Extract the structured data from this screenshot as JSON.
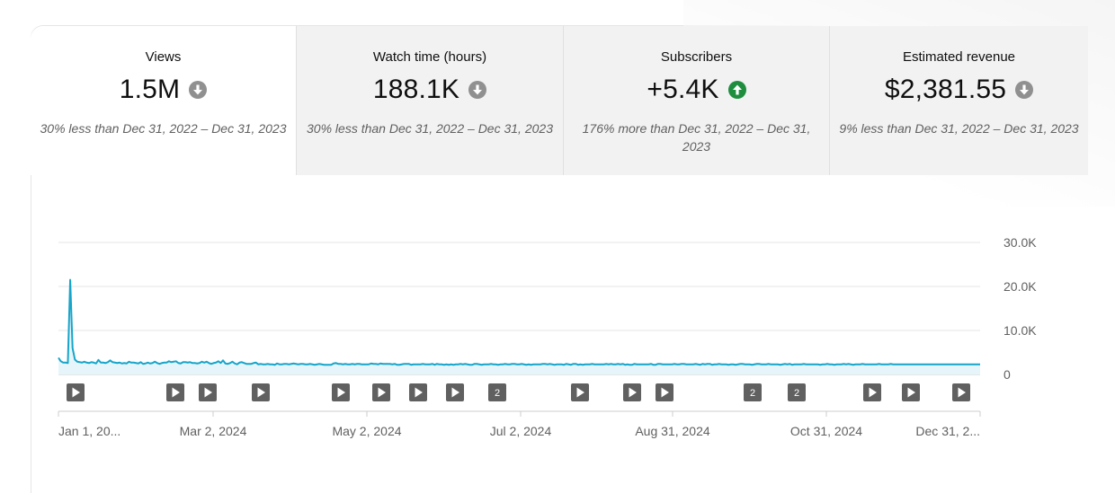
{
  "metrics": [
    {
      "label": "Views",
      "value": "1.5M",
      "trend": "down",
      "comparison": "30% less than Dec 31, 2022 – Dec 31, 2023",
      "active": true
    },
    {
      "label": "Watch time (hours)",
      "value": "188.1K",
      "trend": "down",
      "comparison": "30% less than Dec 31, 2022 – Dec 31, 2023",
      "active": false
    },
    {
      "label": "Subscribers",
      "value": "+5.4K",
      "trend": "up",
      "comparison": "176% more than Dec 31, 2022 – Dec 31, 2023",
      "active": false
    },
    {
      "label": "Estimated revenue",
      "value": "$2,381.55",
      "trend": "down",
      "comparison": "9% less than Dec 31, 2022 – Dec 31, 2023",
      "active": false
    }
  ],
  "icons": {
    "down": "arrow-down-circle-icon",
    "up": "arrow-up-circle-icon",
    "marker": "play-icon"
  },
  "colors": {
    "line": "#17a5c9",
    "area": "#e6f5fa",
    "trend_down": "#909090",
    "trend_up": "#1e8e3e",
    "marker": "#606060"
  },
  "chart_data": {
    "type": "area",
    "series": [
      {
        "values": [
          3800,
          3000,
          2700,
          2700,
          2600,
          21500,
          6000,
          3400,
          2900,
          2800,
          2700,
          2900,
          2700,
          2600,
          2800,
          2700,
          2500,
          3300,
          2700,
          2700,
          2600,
          2800,
          3200,
          2800,
          2700,
          2600,
          2700,
          2500,
          2600,
          2500,
          2900,
          2700,
          2700,
          2600,
          2500,
          2800,
          2400,
          2500,
          2700,
          2500,
          2600,
          2900,
          2600,
          2400,
          2600,
          2700,
          2700,
          3000,
          2800,
          2900,
          3000,
          2600,
          2500,
          2800,
          2800,
          2700,
          2800,
          2600,
          2600,
          2500,
          2600,
          2900,
          2700,
          2900,
          2600,
          2400,
          2600,
          2700,
          3000,
          2600,
          3200,
          2500,
          2400,
          2600,
          2900,
          2500,
          2300,
          2700,
          2800,
          2600,
          2400,
          2400,
          2400,
          2600,
          2700,
          2300,
          2400,
          2300,
          2300,
          2400,
          2300,
          2300,
          2200,
          2500,
          2300,
          2300,
          2400,
          2400,
          2300,
          2400,
          2500,
          2400,
          2300,
          2400,
          2400,
          2300,
          2300,
          2400,
          2300,
          2200,
          2300,
          2400,
          2300,
          2200,
          2200,
          2200,
          2200,
          2500,
          2600,
          2400,
          2400,
          2300,
          2400,
          2300,
          2300,
          2400,
          2300,
          2400,
          2400,
          2300,
          2300,
          2300,
          2300,
          2500,
          2400,
          2400,
          2300,
          2500,
          2400,
          2400,
          2400,
          2400,
          2300,
          2400,
          2200,
          2200,
          2300,
          2400,
          2400,
          2400,
          2200,
          2300,
          2300,
          2300,
          2300,
          2400,
          2300,
          2300,
          2300,
          2400,
          2200,
          2400,
          2300,
          2300,
          2200,
          2300,
          2200,
          2300,
          2200,
          2300,
          2300,
          2400,
          2300,
          2400,
          2300,
          2200,
          2200,
          2400,
          2400,
          2300,
          2200,
          2300,
          2300,
          2300,
          2400,
          2300,
          2300,
          2200,
          2300,
          2300,
          2400,
          2300,
          2300,
          2400,
          2400,
          2300,
          2300,
          2400,
          2300,
          2200,
          2300,
          2200,
          2300,
          2300,
          2300,
          2300,
          2400,
          2400,
          2300,
          2400,
          2300,
          2200,
          2300,
          2300,
          2300,
          2200,
          2400,
          2300,
          2200,
          2400,
          2400,
          2200,
          2300,
          2200,
          2300,
          2300,
          2300,
          2400,
          2300,
          2300,
          2300,
          2300,
          2300,
          2400,
          2300,
          2400,
          2300,
          2300,
          2400,
          2300,
          2400,
          2200,
          2300,
          2200,
          2200,
          2400,
          2300,
          2300,
          2300,
          2300,
          2300,
          2300,
          2400,
          2200,
          2200,
          2400,
          2400,
          2300,
          2300,
          2300,
          2300,
          2300,
          2400,
          2300,
          2300,
          2400,
          2400,
          2300,
          2300,
          2300,
          2300,
          2400,
          2300,
          2200,
          2400,
          2300,
          2400,
          2400,
          2200,
          2300,
          2300,
          2400,
          2300,
          2300,
          2300,
          2200,
          2300,
          2300,
          2200,
          2300,
          2400,
          2400,
          2300,
          2300,
          2300,
          2200,
          2300,
          2400,
          2400,
          2300,
          2300,
          2300,
          2400,
          2300,
          2300,
          2300,
          2300,
          2200,
          2300,
          2400,
          2300,
          2400,
          2200,
          2300,
          2300,
          2300,
          2300,
          2400,
          2300,
          2300,
          2300,
          2300,
          2300,
          2300,
          2200,
          2300,
          2300,
          2400,
          2300,
          2300,
          2200,
          2300,
          2300,
          2300,
          2400,
          2300,
          2400,
          2300,
          2200,
          2300,
          2300,
          2300,
          2400,
          2300,
          2300,
          2300,
          2300,
          2300,
          2300,
          2400,
          2300,
          2300,
          2300,
          2300,
          2400,
          2300,
          2300,
          2300,
          2300,
          2300,
          2300,
          2300,
          2300,
          2300,
          2300,
          2300,
          2300,
          2300,
          2300,
          2300,
          2300,
          2300,
          2300,
          2300,
          2300,
          2300,
          2300,
          2300,
          2300,
          2300,
          2300,
          2300,
          2300,
          2300,
          2300,
          2300,
          2300,
          2300,
          2300,
          2300,
          2300,
          2300,
          2300
        ]
      }
    ],
    "x_tick_labels": [
      "Jan 1, 20...",
      "Mar 2, 2024",
      "May 2, 2024",
      "Jul 2, 2024",
      "Aug 31, 2024",
      "Oct 31, 2024",
      "Dec 31, 2..."
    ],
    "y_tick_labels": [
      "0",
      "10.0K",
      "20.0K",
      "30.0K"
    ],
    "ylim": [
      0,
      30000
    ],
    "grid": true,
    "video_markers": [
      "play",
      "play",
      "play",
      "play",
      "play",
      "play",
      "play",
      "play",
      "2",
      "play",
      "play",
      "play",
      "2",
      "2",
      "play",
      "play",
      "play"
    ]
  }
}
